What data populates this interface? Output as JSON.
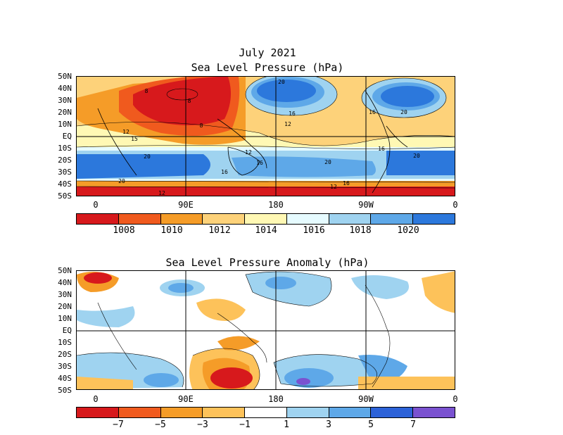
{
  "top": {
    "title_line1": "July 2021",
    "title_line2": "Sea Level Pressure (hPa)",
    "lat_labels": [
      "50N",
      "40N",
      "30N",
      "20N",
      "10N",
      "EQ",
      "10S",
      "20S",
      "30S",
      "40S",
      "50S"
    ],
    "lon_labels": [
      "0",
      "90E",
      "180",
      "90W",
      "0"
    ],
    "contour_labels": [
      "8",
      "8",
      "8",
      "12",
      "15",
      "20",
      "20",
      "12",
      "16",
      "12",
      "16",
      "16",
      "20",
      "20",
      "16",
      "20",
      "16",
      "12",
      "16",
      "12",
      "20"
    ],
    "colorbar": {
      "colors": [
        "#d7191c",
        "#f05a1e",
        "#f59c28",
        "#fdd27a",
        "#fff8b4",
        "#e6fbff",
        "#9fd3f0",
        "#5ea8e8",
        "#2c78dc"
      ],
      "tick_labels": [
        "1008",
        "1010",
        "1012",
        "1014",
        "1016",
        "1018",
        "1020"
      ]
    }
  },
  "bottom": {
    "title": "Sea Level Pressure Anomaly (hPa)",
    "lat_labels": [
      "50N",
      "40N",
      "30N",
      "20N",
      "10N",
      "EQ",
      "10S",
      "20S",
      "30S",
      "40S",
      "50S"
    ],
    "lon_labels": [
      "0",
      "90E",
      "180",
      "90W",
      "0"
    ],
    "colorbar": {
      "colors": [
        "#d7191c",
        "#f05a1e",
        "#f59c28",
        "#fdc25a",
        "#ffffff",
        "#9fd3f0",
        "#5ea8e8",
        "#2c62d8",
        "#7a52d0"
      ],
      "tick_labels": [
        "−7",
        "−5",
        "−3",
        "−1",
        "1",
        "3",
        "5",
        "7"
      ]
    }
  }
}
